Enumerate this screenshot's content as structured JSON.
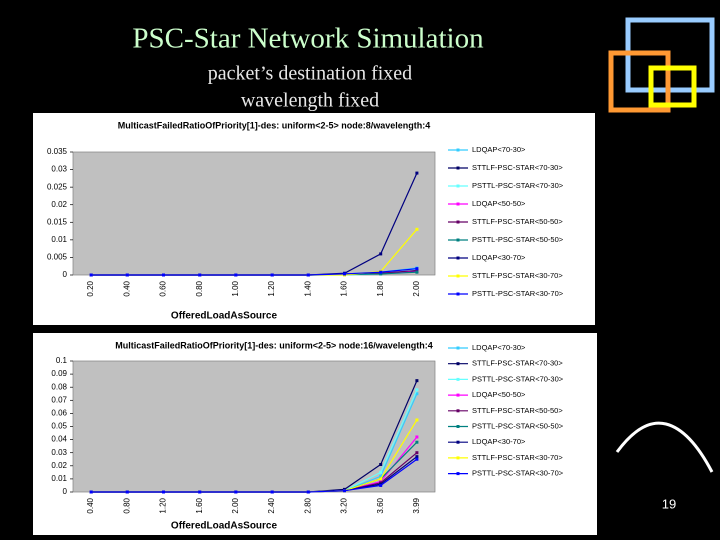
{
  "slide_title": "PSC-Star Network Simulation",
  "subtitle_lines": [
    "packet’s destination fixed",
    "wavelength fixed"
  ],
  "page_number": "19",
  "chart_data": [
    {
      "type": "line",
      "title": "MulticastFailedRatioOfPriority[1]-des: uniform<2-5> node:8/wavelength:4",
      "x_label": "OfferedLoadAsSource",
      "categories": [
        "0.20",
        "0.40",
        "0.60",
        "0.80",
        "1.00",
        "1.20",
        "1.40",
        "1.60",
        "1.80",
        "2.00"
      ],
      "ylim": [
        0,
        0.035
      ],
      "yticks": [
        0,
        0.005,
        0.01,
        0.015,
        0.02,
        0.025,
        0.03,
        0.035
      ],
      "series": [
        {
          "name": "LDQAP<70-30>",
          "color": "#33ccff",
          "values": [
            0,
            0,
            0,
            0,
            0,
            0,
            0,
            0.0003,
            0.0008,
            0.002
          ]
        },
        {
          "name": "STTLF-PSC-STAR<70-30>",
          "color": "#000066",
          "values": [
            0,
            0,
            0,
            0,
            0,
            0,
            0,
            0.0002,
            0.0005,
            0.001
          ]
        },
        {
          "name": "PSTTL-PSC-STAR<70-30>",
          "color": "#66ffff",
          "values": [
            0,
            0,
            0,
            0,
            0,
            0,
            0,
            0,
            0.0003,
            0.0015
          ]
        },
        {
          "name": "LDQAP<50-50>",
          "color": "#ff00ff",
          "values": [
            0,
            0,
            0,
            0,
            0,
            0,
            0,
            0.0002,
            0.0004,
            0.0012
          ]
        },
        {
          "name": "STTLF-PSC-STAR<50-50>",
          "color": "#660066",
          "values": [
            0,
            0,
            0,
            0,
            0,
            0,
            0,
            0.0003,
            0.0005,
            0.0013
          ]
        },
        {
          "name": "PSTTL-PSC-STAR<50-50>",
          "color": "#008080",
          "values": [
            0,
            0,
            0,
            0,
            0,
            0,
            0,
            0.0001,
            0.0003,
            0.0008
          ]
        },
        {
          "name": "LDQAP<30-70>",
          "color": "#000080",
          "values": [
            0,
            0,
            0,
            0,
            0,
            0,
            0,
            0.0005,
            0.006,
            0.029
          ]
        },
        {
          "name": "STTLF-PSC-STAR<30-70>",
          "color": "#ffff00",
          "values": [
            0,
            0,
            0,
            0,
            0,
            0,
            0,
            0,
            0.001,
            0.013
          ]
        },
        {
          "name": "PSTTL-PSC-STAR<30-70>",
          "color": "#0000ff",
          "values": [
            0,
            0,
            0,
            0,
            0,
            0,
            0,
            0.0003,
            0.0008,
            0.0018
          ]
        }
      ]
    },
    {
      "type": "line",
      "title": "MulticastFailedRatioOfPriority[1]-des: uniform<2-5> node:16/wavelength:4",
      "x_label": "OfferedLoadAsSource",
      "categories": [
        "0.40",
        "0.80",
        "1.20",
        "1.60",
        "2.00",
        "2.40",
        "2.80",
        "3.20",
        "3.60",
        "3.99"
      ],
      "ylim": [
        0,
        0.1
      ],
      "yticks": [
        0,
        0.01,
        0.02,
        0.03,
        0.04,
        0.05,
        0.06,
        0.07,
        0.08,
        0.09,
        0.1
      ],
      "series": [
        {
          "name": "LDQAP<70-30>",
          "color": "#33ccff",
          "values": [
            0,
            0,
            0,
            0,
            0,
            0,
            0,
            0.001,
            0.012,
            0.075
          ]
        },
        {
          "name": "STTLF-PSC-STAR<70-30>",
          "color": "#000066",
          "values": [
            0,
            0,
            0,
            0,
            0,
            0,
            0,
            0.002,
            0.021,
            0.085
          ]
        },
        {
          "name": "PSTTL-PSC-STAR<70-30>",
          "color": "#66ffff",
          "values": [
            0,
            0,
            0,
            0,
            0,
            0,
            0,
            0.001,
            0.015,
            0.078
          ]
        },
        {
          "name": "LDQAP<50-50>",
          "color": "#ff00ff",
          "values": [
            0,
            0,
            0,
            0,
            0,
            0,
            0,
            0.001,
            0.008,
            0.042
          ]
        },
        {
          "name": "STTLF-PSC-STAR<50-50>",
          "color": "#660066",
          "values": [
            0,
            0,
            0,
            0,
            0,
            0,
            0,
            0.001,
            0.007,
            0.03
          ]
        },
        {
          "name": "PSTTL-PSC-STAR<50-50>",
          "color": "#008080",
          "values": [
            0,
            0,
            0,
            0,
            0,
            0,
            0,
            0.001,
            0.01,
            0.038
          ]
        },
        {
          "name": "LDQAP<30-70>",
          "color": "#000080",
          "values": [
            0,
            0,
            0,
            0,
            0,
            0,
            0,
            0.001,
            0.006,
            0.027
          ]
        },
        {
          "name": "STTLF-PSC-STAR<30-70>",
          "color": "#ffff00",
          "values": [
            0,
            0,
            0,
            0,
            0,
            0,
            0,
            0.001,
            0.01,
            0.055
          ]
        },
        {
          "name": "PSTTL-PSC-STAR<30-70>",
          "color": "#0000ff",
          "values": [
            0,
            0,
            0,
            0,
            0,
            0,
            0,
            0.001,
            0.005,
            0.025
          ]
        }
      ]
    }
  ]
}
